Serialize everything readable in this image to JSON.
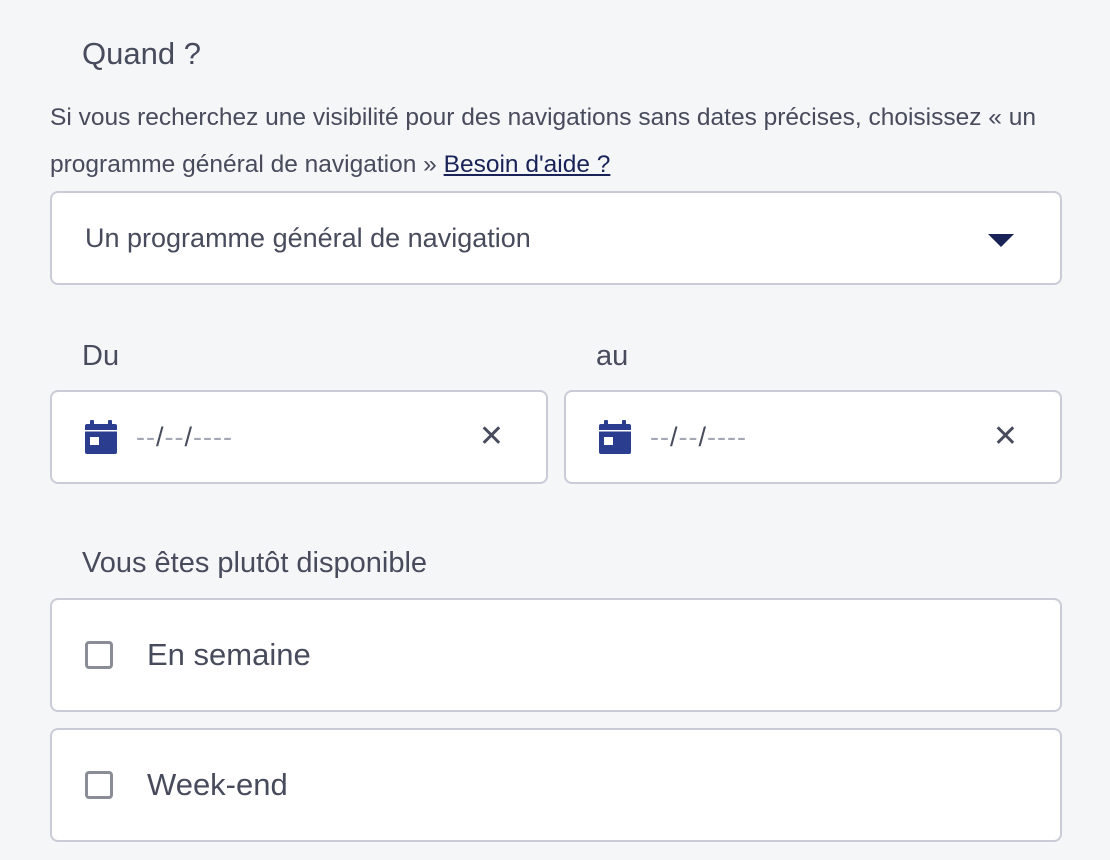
{
  "when": {
    "title": "Quand ?",
    "description": "Si vous recherchez une visibilité pour des navigations sans dates précises, choisissez « un programme général de navigation »",
    "help_link": "Besoin d'aide ?",
    "select_value": "Un programme général de navigation"
  },
  "dates": {
    "from_label": "Du",
    "to_label": "au",
    "placeholder_day": "--",
    "placeholder_month": "--",
    "placeholder_year": "----",
    "separator": "/",
    "clear_glyph": "✕",
    "icon": "calendar-icon",
    "icon_color": "#2b3d8f"
  },
  "availability": {
    "title": "Vous êtes plutôt disponible",
    "options": [
      {
        "label": "En semaine",
        "checked": false
      },
      {
        "label": "Week-end",
        "checked": false
      }
    ]
  }
}
